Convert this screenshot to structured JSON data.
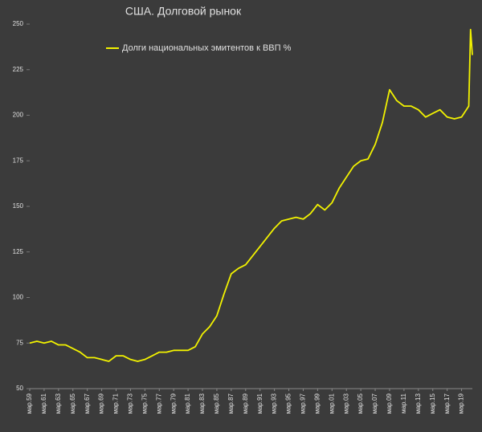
{
  "chart_data": {
    "type": "line",
    "title": "США. Долговой рынок",
    "series": [
      {
        "name": "Долги национальных эмитентов к ВВП %",
        "color": "#f2f200",
        "x": [
          1959,
          1960,
          1961,
          1962,
          1963,
          1964,
          1965,
          1966,
          1967,
          1968,
          1969,
          1970,
          1971,
          1972,
          1973,
          1974,
          1975,
          1976,
          1977,
          1978,
          1979,
          1980,
          1981,
          1982,
          1983,
          1984,
          1985,
          1986,
          1987,
          1988,
          1989,
          1990,
          1991,
          1992,
          1993,
          1994,
          1995,
          1996,
          1997,
          1998,
          1999,
          2000,
          2001,
          2002,
          2003,
          2004,
          2005,
          2006,
          2007,
          2008,
          2009,
          2010,
          2011,
          2012,
          2013,
          2014,
          2015,
          2016,
          2017,
          2018,
          2019,
          2020,
          2020.25,
          2020.5
        ],
        "values": [
          75,
          76,
          75,
          76,
          74,
          74,
          72,
          70,
          67,
          67,
          66,
          65,
          68,
          68,
          66,
          65,
          66,
          68,
          70,
          70,
          71,
          71,
          71,
          73,
          80,
          84,
          90,
          102,
          113,
          116,
          118,
          123,
          128,
          133,
          138,
          142,
          143,
          144,
          143,
          146,
          151,
          148,
          152,
          160,
          166,
          172,
          175,
          176,
          184,
          196,
          214,
          208,
          205,
          205,
          203,
          199,
          201,
          203,
          199,
          198,
          199,
          205,
          247,
          233
        ]
      }
    ],
    "xlim": [
      1959,
      2020.5
    ],
    "xticks": [
      {
        "value": 1959,
        "label": "мар.59"
      },
      {
        "value": 1961,
        "label": "мар.61"
      },
      {
        "value": 1963,
        "label": "мар.63"
      },
      {
        "value": 1965,
        "label": "мар.65"
      },
      {
        "value": 1967,
        "label": "мар.67"
      },
      {
        "value": 1969,
        "label": "мар.69"
      },
      {
        "value": 1971,
        "label": "мар.71"
      },
      {
        "value": 1973,
        "label": "мар.73"
      },
      {
        "value": 1975,
        "label": "мар.75"
      },
      {
        "value": 1977,
        "label": "мар.77"
      },
      {
        "value": 1979,
        "label": "мар.79"
      },
      {
        "value": 1981,
        "label": "мар.81"
      },
      {
        "value": 1983,
        "label": "мар.83"
      },
      {
        "value": 1985,
        "label": "мар.85"
      },
      {
        "value": 1987,
        "label": "мар.87"
      },
      {
        "value": 1989,
        "label": "мар.89"
      },
      {
        "value": 1991,
        "label": "мар.91"
      },
      {
        "value": 1993,
        "label": "мар.93"
      },
      {
        "value": 1995,
        "label": "мар.95"
      },
      {
        "value": 1997,
        "label": "мар.97"
      },
      {
        "value": 1999,
        "label": "мар.99"
      },
      {
        "value": 2001,
        "label": "мар.01"
      },
      {
        "value": 2003,
        "label": "мар.03"
      },
      {
        "value": 2005,
        "label": "мар.05"
      },
      {
        "value": 2007,
        "label": "мар.07"
      },
      {
        "value": 2009,
        "label": "мар.09"
      },
      {
        "value": 2011,
        "label": "мар.11"
      },
      {
        "value": 2013,
        "label": "мар.13"
      },
      {
        "value": 2015,
        "label": "мар.15"
      },
      {
        "value": 2017,
        "label": "мар.17"
      },
      {
        "value": 2019,
        "label": "мар.19"
      }
    ],
    "ylim": [
      50,
      250
    ],
    "yticks": [
      50,
      75,
      100,
      125,
      150,
      175,
      200,
      225,
      250
    ]
  }
}
